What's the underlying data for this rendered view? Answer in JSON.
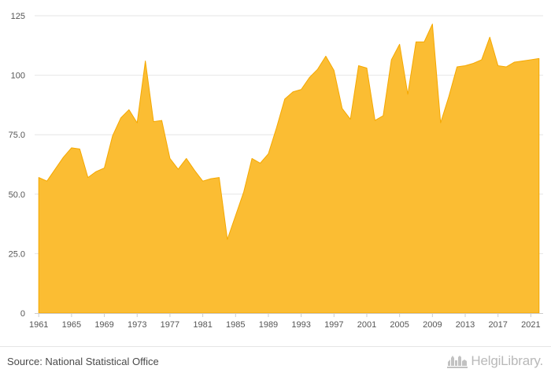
{
  "chart_data": {
    "type": "area",
    "x": [
      1961,
      1962,
      1963,
      1964,
      1965,
      1966,
      1967,
      1968,
      1969,
      1970,
      1971,
      1972,
      1973,
      1974,
      1975,
      1976,
      1977,
      1978,
      1979,
      1980,
      1981,
      1982,
      1983,
      1984,
      1985,
      1986,
      1987,
      1988,
      1989,
      1990,
      1991,
      1992,
      1993,
      1994,
      1995,
      1996,
      1997,
      1998,
      1999,
      2000,
      2001,
      2002,
      2003,
      2004,
      2005,
      2006,
      2007,
      2008,
      2009,
      2010,
      2011,
      2012,
      2013,
      2014,
      2015,
      2016,
      2017,
      2018,
      2019,
      2020,
      2021,
      2022
    ],
    "values": [
      57,
      55.5,
      60.5,
      65.5,
      69.5,
      69,
      57,
      59.5,
      61,
      74.5,
      82,
      85.5,
      80,
      106,
      80.5,
      81,
      65,
      60.5,
      65,
      60,
      55.5,
      56.5,
      57,
      31,
      41,
      51,
      65,
      63,
      67,
      78,
      90,
      93,
      94,
      99,
      102.5,
      108,
      102,
      86,
      81.5,
      104,
      103,
      81,
      83,
      106.5,
      113,
      92,
      114,
      114,
      121.5,
      80,
      91,
      103.5,
      104,
      105,
      106.5,
      116,
      104,
      103.5,
      105.5,
      106,
      106.5,
      107
    ],
    "xticks": [
      "1961",
      "1965",
      "1969",
      "1973",
      "1977",
      "1981",
      "1985",
      "1989",
      "1993",
      "1997",
      "2001",
      "2005",
      "2009",
      "2013",
      "2017",
      "2021"
    ],
    "yticks": [
      "0",
      "25.0",
      "50.0",
      "75.0",
      "100",
      "125"
    ],
    "ylim": [
      0,
      125
    ],
    "xlim": [
      1960.5,
      2022.5
    ],
    "grid": true,
    "fill_color": "#fbbd33",
    "edge_color": "#f5a800"
  },
  "footer": {
    "source": "Source: National Statistical Office",
    "brand": "HelgiLibrary."
  }
}
